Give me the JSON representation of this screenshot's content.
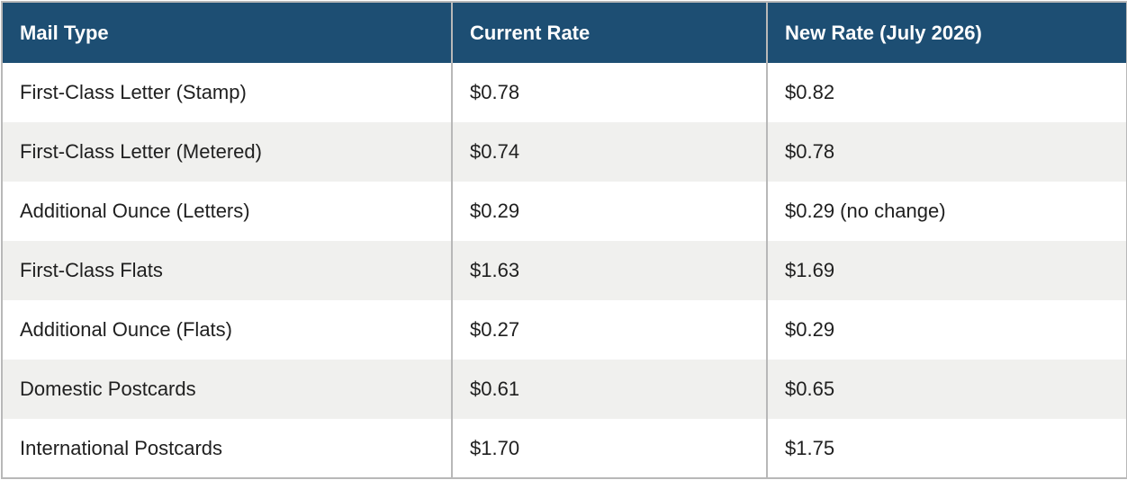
{
  "table": {
    "headers": [
      "Mail Type",
      "Current Rate",
      "New Rate (July 2026)"
    ],
    "rows": [
      [
        "First-Class Letter (Stamp)",
        "$0.78",
        "$0.82"
      ],
      [
        "First-Class Letter (Metered)",
        "$0.74",
        "$0.78"
      ],
      [
        "Additional Ounce (Letters)",
        "$0.29",
        "$0.29 (no change)"
      ],
      [
        "First-Class Flats",
        "$1.63",
        "$1.69"
      ],
      [
        "Additional Ounce (Flats)",
        "$0.27",
        "$0.29"
      ],
      [
        "Domestic Postcards",
        "$0.61",
        "$0.65"
      ],
      [
        "International Postcards",
        "$1.70",
        "$1.75"
      ]
    ]
  },
  "colors": {
    "header_background": "#1d4e73",
    "header_text": "#ffffff",
    "row_alt_background": "#f0f0ee",
    "border": "#b8b8b8"
  }
}
